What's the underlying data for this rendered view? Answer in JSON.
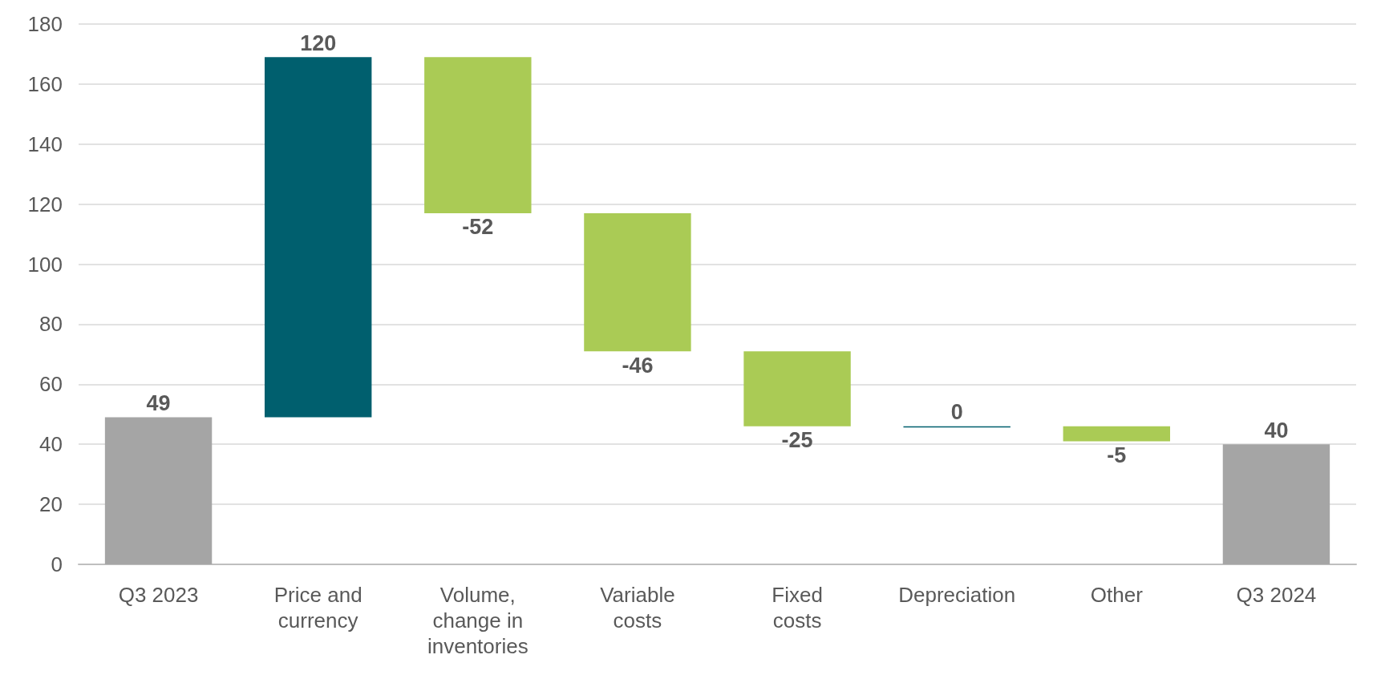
{
  "chart_data": {
    "type": "bar",
    "categories": [
      "Q3 2023",
      "Price and currency",
      "Volume, change in inventories",
      "Variable costs",
      "Fixed costs",
      "Depreciation",
      "Other",
      "Q3 2024"
    ],
    "values": [
      49,
      120,
      -52,
      -46,
      -25,
      0,
      -5,
      40
    ],
    "base": [
      0,
      49,
      169,
      117,
      71,
      46,
      46,
      0
    ],
    "colors": [
      "#a5a5a5",
      "#005f6e",
      "#aacb55",
      "#aacb55",
      "#aacb55",
      "#005f6e",
      "#aacb55",
      "#a5a5a5"
    ],
    "ylim": [
      0,
      180
    ],
    "yticks": [
      0,
      20,
      40,
      60,
      80,
      100,
      120,
      140,
      160,
      180
    ],
    "grid": "y",
    "data_labels": true
  }
}
